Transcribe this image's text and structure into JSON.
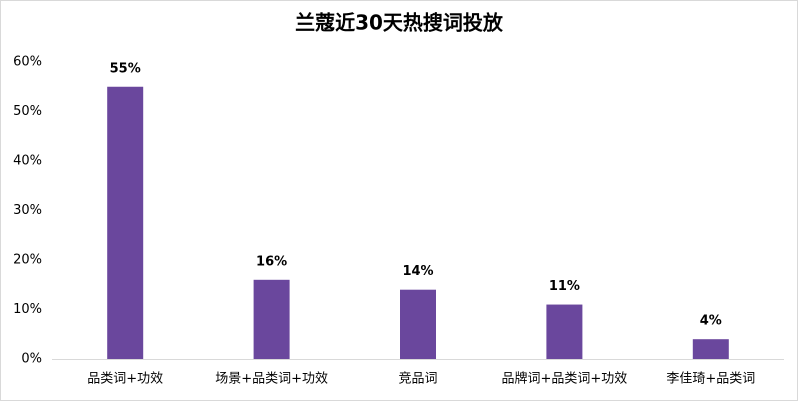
{
  "chart_data": {
    "type": "bar",
    "title": "兰蔻近30天热搜词投放",
    "categories": [
      "品类词+功效",
      "场景+品类词+功效",
      "竞品词",
      "品牌词+品类词+功效",
      "李佳琦+品类词"
    ],
    "values": [
      55,
      16,
      14,
      11,
      4
    ],
    "value_labels": [
      "55%",
      "16%",
      "14%",
      "11%",
      "4%"
    ],
    "color": "#6a479d",
    "ylim": [
      0,
      60
    ],
    "yticks": [
      {
        "value": 0,
        "label": "0%"
      },
      {
        "value": 10,
        "label": "10%"
      },
      {
        "value": 20,
        "label": "20%"
      },
      {
        "value": 30,
        "label": "30%"
      },
      {
        "value": 40,
        "label": "40%"
      },
      {
        "value": 50,
        "label": "50%"
      },
      {
        "value": 60,
        "label": "60%"
      }
    ],
    "grid": false
  }
}
